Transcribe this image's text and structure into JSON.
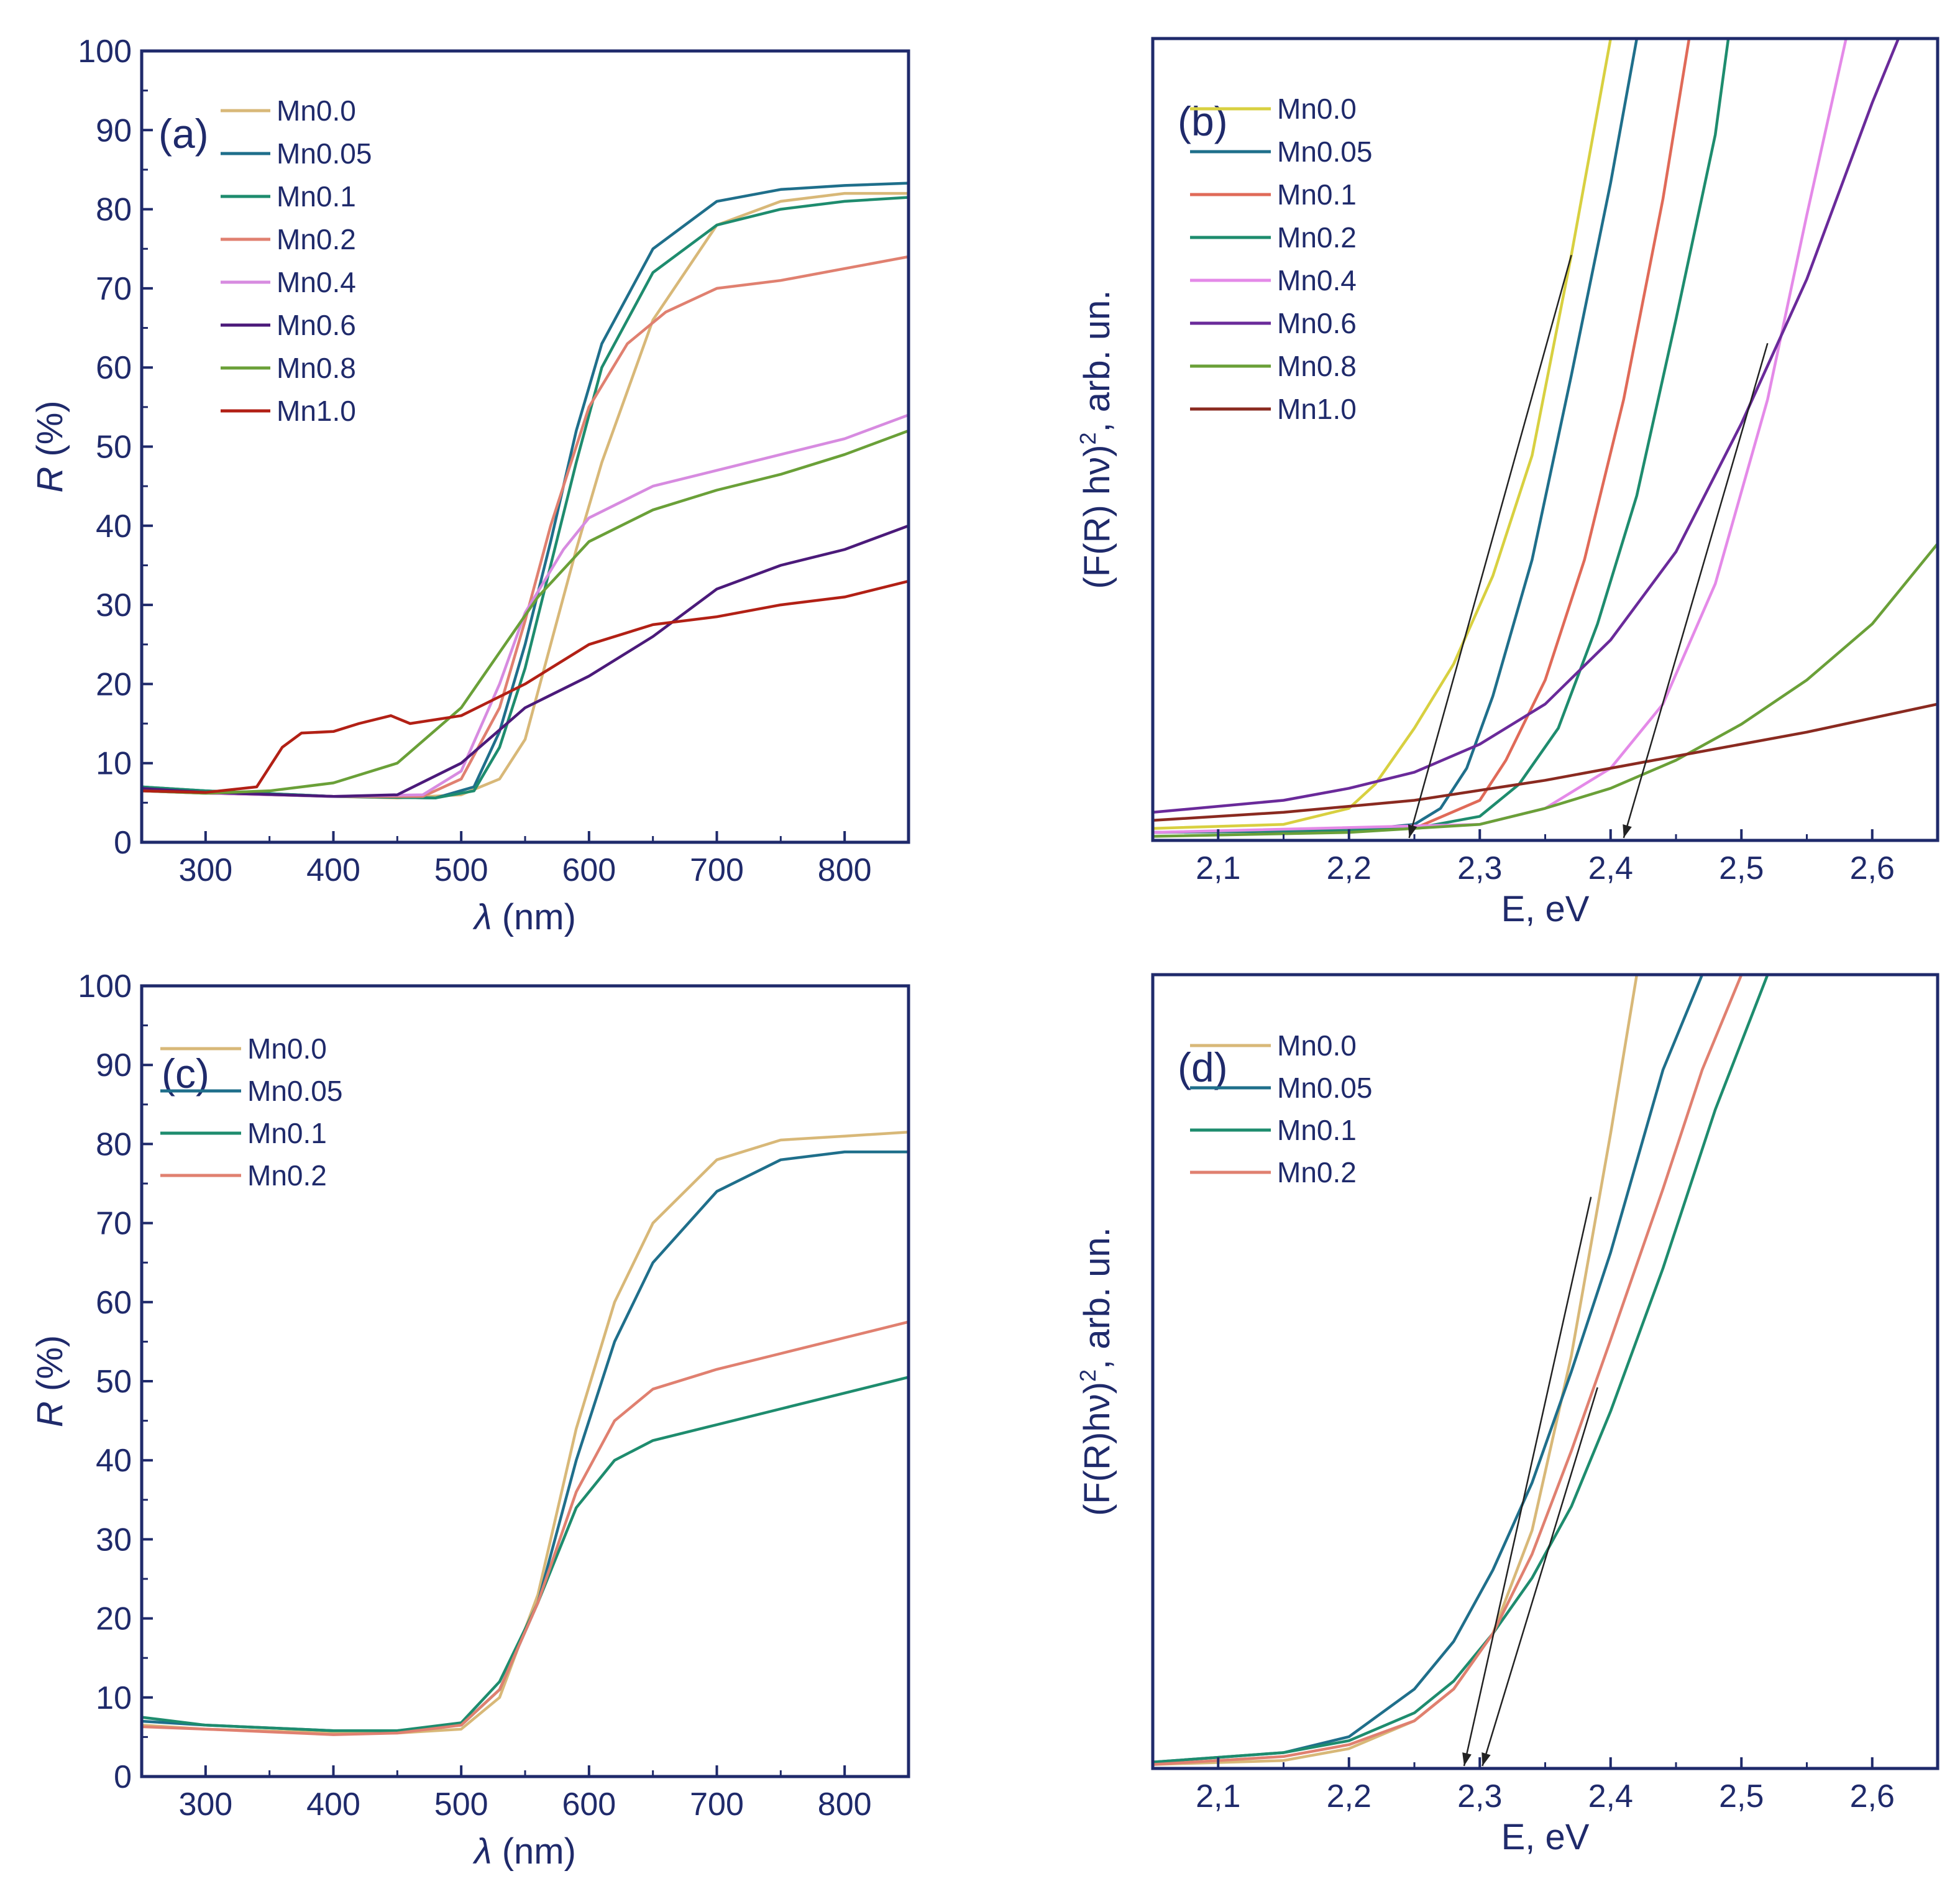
{
  "figure": {
    "axis_color": "#1f2a6b"
  },
  "chart_data": [
    {
      "type": "line",
      "panel": "(a)",
      "xlabel_symbol": "λ",
      "xlabel_unit": "(nm)",
      "ylabel_symbol": "R",
      "ylabel_unit": "(%)",
      "xlim": [
        250,
        850
      ],
      "ylim": [
        0,
        100
      ],
      "xticks": [
        "300",
        "400",
        "500",
        "600",
        "700",
        "800"
      ],
      "yticks": [
        "0",
        "10",
        "20",
        "30",
        "40",
        "50",
        "60",
        "70",
        "80",
        "90",
        "100"
      ],
      "legend_position": "top-left",
      "series": [
        {
          "name": "Mn0.0",
          "color": "#d8b878",
          "x": [
            250,
            300,
            400,
            450,
            500,
            530,
            550,
            570,
            590,
            610,
            650,
            700,
            750,
            800,
            850
          ],
          "y": [
            6.5,
            6.2,
            5.8,
            5.6,
            6,
            8,
            13,
            25,
            37,
            48,
            66,
            78,
            81,
            82,
            82
          ]
        },
        {
          "name": "Mn0.05",
          "color": "#1f6f8b",
          "x": [
            250,
            300,
            400,
            480,
            510,
            530,
            550,
            570,
            590,
            610,
            650,
            700,
            750,
            800,
            850
          ],
          "y": [
            7,
            6.5,
            5.8,
            5.6,
            7,
            14,
            25,
            38,
            52,
            63,
            75,
            81,
            82.5,
            83,
            83.3
          ]
        },
        {
          "name": "Mn0.1",
          "color": "#1e8c6e",
          "x": [
            250,
            300,
            400,
            480,
            510,
            530,
            550,
            570,
            590,
            610,
            650,
            700,
            750,
            800,
            850
          ],
          "y": [
            7,
            6.5,
            5.8,
            5.6,
            6.5,
            12,
            22,
            35,
            48,
            60,
            72,
            78,
            80,
            81,
            81.5
          ]
        },
        {
          "name": "Mn0.2",
          "color": "#e08070",
          "x": [
            250,
            300,
            400,
            470,
            500,
            530,
            550,
            570,
            600,
            630,
            660,
            700,
            750,
            800,
            850
          ],
          "y": [
            6.5,
            6.2,
            5.8,
            5.8,
            8,
            17,
            28,
            40,
            55,
            63,
            67,
            70,
            71,
            72.5,
            74
          ]
        },
        {
          "name": "Mn0.4",
          "color": "#d78be0",
          "x": [
            250,
            300,
            400,
            470,
            500,
            530,
            550,
            580,
            600,
            650,
            700,
            750,
            800,
            850
          ],
          "y": [
            6.5,
            6.2,
            5.8,
            6,
            9,
            20,
            29,
            37,
            41,
            45,
            47,
            49,
            51,
            54
          ]
        },
        {
          "name": "Mn0.6",
          "color": "#4b1a7a",
          "x": [
            250,
            300,
            400,
            450,
            500,
            550,
            600,
            650,
            700,
            750,
            800,
            850
          ],
          "y": [
            6.8,
            6.3,
            5.8,
            6,
            10,
            17,
            21,
            26,
            32,
            35,
            37,
            40
          ]
        },
        {
          "name": "Mn0.8",
          "color": "#6aa038",
          "x": [
            250,
            300,
            350,
            400,
            450,
            500,
            530,
            560,
            600,
            650,
            700,
            750,
            800,
            850
          ],
          "y": [
            6.5,
            6.2,
            6.5,
            7.5,
            10,
            17,
            24,
            31,
            38,
            42,
            44.5,
            46.5,
            49,
            52
          ]
        },
        {
          "name": "Mn1.0",
          "color": "#b22015",
          "x": [
            250,
            300,
            340,
            360,
            375,
            400,
            420,
            445,
            460,
            500,
            550,
            600,
            650,
            700,
            750,
            800,
            850
          ],
          "y": [
            6.5,
            6.3,
            7,
            12,
            13.8,
            14,
            15,
            16,
            15,
            16,
            20,
            25,
            27.5,
            28.5,
            30,
            31,
            33
          ]
        }
      ]
    },
    {
      "type": "line",
      "panel": "(b)",
      "xlabel": "E, eV",
      "ylabel_main": "(F(R) hν)",
      "ylabel_sup": "2",
      "ylabel_tail": ", arb. un.",
      "xlim": [
        2.05,
        2.65
      ],
      "ylim": [
        0,
        100
      ],
      "xticks": [
        "2,1",
        "2,2",
        "2,3",
        "2,4",
        "2,5",
        "2,6"
      ],
      "xtick_values": [
        2.1,
        2.2,
        2.3,
        2.4,
        2.5,
        2.6
      ],
      "legend_position": "top-left",
      "series": [
        {
          "name": "Mn0.0",
          "color": "#d8d040",
          "x": [
            2.05,
            2.15,
            2.2,
            2.22,
            2.25,
            2.28,
            2.31,
            2.34,
            2.37,
            2.4
          ],
          "y": [
            1.5,
            2,
            4,
            7,
            14,
            22,
            33,
            48,
            73,
            100
          ]
        },
        {
          "name": "Mn0.05",
          "color": "#1f6f8b",
          "x": [
            2.05,
            2.2,
            2.25,
            2.27,
            2.29,
            2.31,
            2.34,
            2.37,
            2.4,
            2.42
          ],
          "y": [
            1,
            1.2,
            2,
            4,
            9,
            18,
            35,
            58,
            82,
            100
          ]
        },
        {
          "name": "Mn0.1",
          "color": "#e06a58",
          "x": [
            2.05,
            2.25,
            2.3,
            2.32,
            2.35,
            2.38,
            2.41,
            2.44,
            2.46
          ],
          "y": [
            1,
            1.5,
            5,
            10,
            20,
            35,
            55,
            80,
            100
          ]
        },
        {
          "name": "Mn0.2",
          "color": "#1e8c6e",
          "x": [
            2.05,
            2.25,
            2.3,
            2.33,
            2.36,
            2.39,
            2.42,
            2.45,
            2.48,
            2.49
          ],
          "y": [
            1,
            1.5,
            3,
            7,
            14,
            27,
            43,
            65,
            88,
            100
          ]
        },
        {
          "name": "Mn0.4",
          "color": "#e48ae8",
          "x": [
            2.05,
            2.3,
            2.35,
            2.4,
            2.44,
            2.48,
            2.52,
            2.55,
            2.58
          ],
          "y": [
            1,
            2,
            4,
            9,
            17,
            32,
            55,
            78,
            100
          ]
        },
        {
          "name": "Mn0.6",
          "color": "#6a2a9a",
          "x": [
            2.05,
            2.15,
            2.2,
            2.25,
            2.3,
            2.35,
            2.4,
            2.45,
            2.5,
            2.55,
            2.6,
            2.62
          ],
          "y": [
            3.5,
            5,
            6.5,
            8.5,
            12,
            17,
            25,
            36,
            52,
            70,
            92,
            100
          ]
        },
        {
          "name": "Mn0.8",
          "color": "#6aa038",
          "x": [
            2.05,
            2.2,
            2.3,
            2.35,
            2.4,
            2.45,
            2.5,
            2.55,
            2.6,
            2.65
          ],
          "y": [
            0.5,
            1,
            2,
            4,
            6.5,
            10,
            14.5,
            20,
            27,
            37
          ]
        },
        {
          "name": "Mn1.0",
          "color": "#8a2a20",
          "x": [
            2.05,
            2.15,
            2.25,
            2.35,
            2.45,
            2.55,
            2.65
          ],
          "y": [
            2.5,
            3.5,
            5,
            7.5,
            10.5,
            13.5,
            17
          ]
        }
      ]
    },
    {
      "type": "line",
      "panel": "(c)",
      "xlabel_symbol": "λ",
      "xlabel_unit": "(nm)",
      "ylabel_symbol": "R",
      "ylabel_unit": "(%)",
      "xlim": [
        250,
        850
      ],
      "ylim": [
        0,
        100
      ],
      "xticks": [
        "300",
        "400",
        "500",
        "600",
        "700",
        "800"
      ],
      "yticks": [
        "0",
        "10",
        "20",
        "30",
        "40",
        "50",
        "60",
        "70",
        "80",
        "90",
        "100"
      ],
      "legend_position": "top-left",
      "series": [
        {
          "name": "Mn0.0",
          "color": "#d8b878",
          "x": [
            250,
            300,
            400,
            450,
            500,
            530,
            560,
            590,
            620,
            650,
            700,
            750,
            800,
            850
          ],
          "y": [
            6.5,
            6,
            5.5,
            5.5,
            6,
            10,
            23,
            44,
            60,
            70,
            78,
            80.5,
            81,
            81.5
          ]
        },
        {
          "name": "Mn0.05",
          "color": "#1f6f8b",
          "x": [
            250,
            300,
            400,
            450,
            500,
            530,
            560,
            590,
            620,
            650,
            700,
            750,
            800,
            850
          ],
          "y": [
            7,
            6.5,
            5.8,
            5.8,
            6.5,
            11,
            22,
            40,
            55,
            65,
            74,
            78,
            79,
            79
          ]
        },
        {
          "name": "Mn0.1",
          "color": "#1e8c6e",
          "x": [
            250,
            300,
            400,
            450,
            500,
            530,
            560,
            590,
            620,
            650,
            700,
            750,
            800,
            850
          ],
          "y": [
            7.5,
            6.5,
            5.8,
            5.8,
            6.8,
            12,
            22,
            34,
            40,
            42.5,
            44.5,
            46.5,
            48.5,
            50.5
          ]
        },
        {
          "name": "Mn0.2",
          "color": "#e08070",
          "x": [
            250,
            300,
            400,
            450,
            500,
            530,
            560,
            590,
            620,
            650,
            700,
            750,
            800,
            850
          ],
          "y": [
            6.3,
            6,
            5.3,
            5.5,
            6.5,
            11,
            22,
            36,
            45,
            49,
            51.5,
            53.5,
            55.5,
            57.5
          ]
        }
      ]
    },
    {
      "type": "line",
      "panel": "(d)",
      "xlabel": "E, eV",
      "ylabel_main": "(F(R)hν)",
      "ylabel_sup": "2",
      "ylabel_tail": ", arb. un.",
      "xlim": [
        2.05,
        2.65
      ],
      "ylim": [
        0,
        100
      ],
      "xticks": [
        "2,1",
        "2,2",
        "2,3",
        "2,4",
        "2,5",
        "2,6"
      ],
      "xtick_values": [
        2.1,
        2.2,
        2.3,
        2.4,
        2.5,
        2.6
      ],
      "legend_position": "top-left",
      "series": [
        {
          "name": "Mn0.0",
          "color": "#d8b878",
          "x": [
            2.05,
            2.15,
            2.2,
            2.25,
            2.28,
            2.31,
            2.34,
            2.37,
            2.4,
            2.42
          ],
          "y": [
            0.5,
            1,
            2.5,
            6,
            10,
            17,
            30,
            52,
            80,
            100
          ]
        },
        {
          "name": "Mn0.05",
          "color": "#1f6f8b",
          "x": [
            2.05,
            2.15,
            2.2,
            2.25,
            2.28,
            2.31,
            2.34,
            2.37,
            2.4,
            2.44,
            2.47
          ],
          "y": [
            0.8,
            2,
            4,
            10,
            16,
            25,
            36,
            50,
            65,
            88,
            100
          ]
        },
        {
          "name": "Mn0.1",
          "color": "#1e8c6e",
          "x": [
            2.05,
            2.15,
            2.2,
            2.25,
            2.28,
            2.31,
            2.34,
            2.37,
            2.4,
            2.44,
            2.48,
            2.52
          ],
          "y": [
            0.8,
            2,
            3.5,
            7,
            11,
            17,
            24,
            33,
            45,
            63,
            83,
            100
          ]
        },
        {
          "name": "Mn0.2",
          "color": "#e08070",
          "x": [
            2.05,
            2.15,
            2.2,
            2.25,
            2.28,
            2.31,
            2.34,
            2.37,
            2.4,
            2.44,
            2.47,
            2.5
          ],
          "y": [
            0.5,
            1.5,
            3,
            6,
            10,
            17,
            27,
            40,
            54,
            73,
            88,
            100
          ]
        }
      ]
    }
  ]
}
